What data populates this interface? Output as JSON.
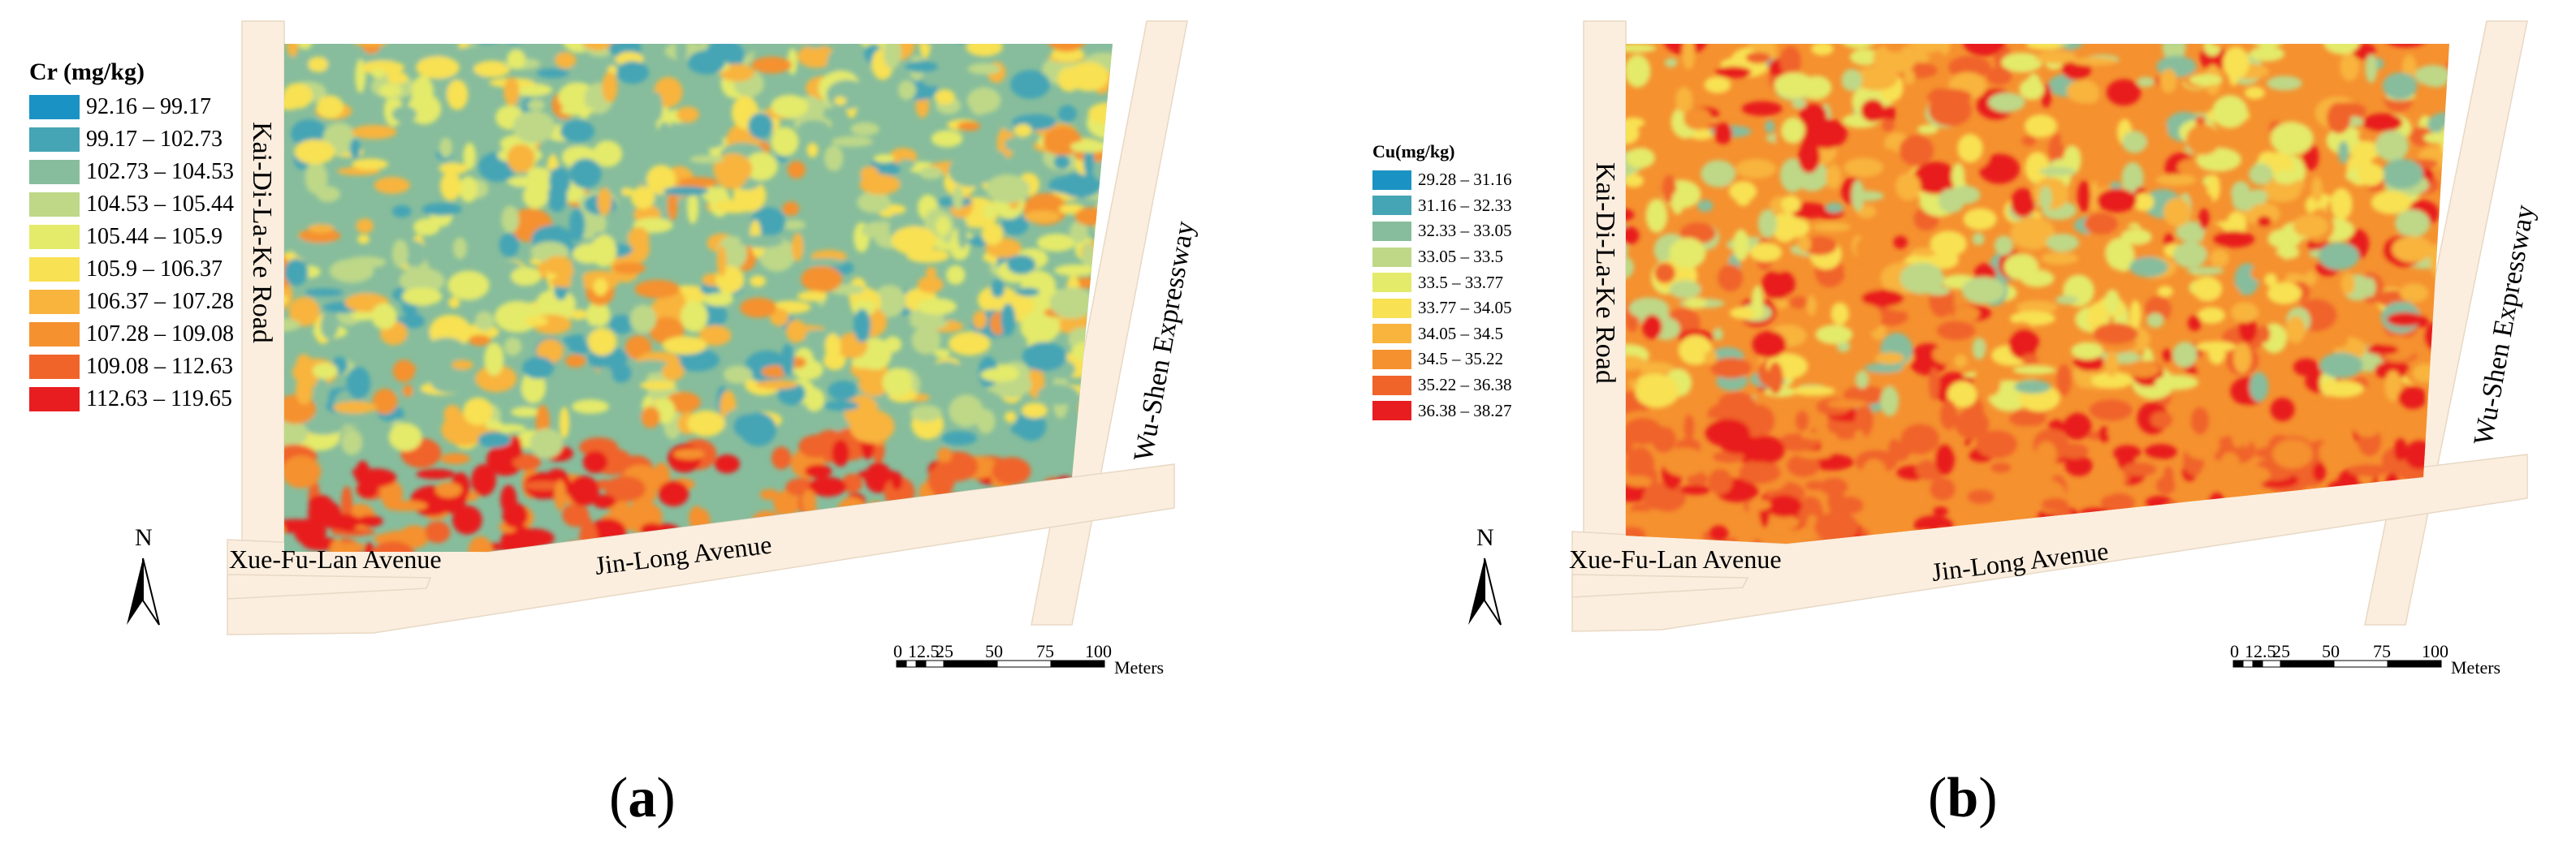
{
  "panels": [
    {
      "id": "a",
      "panel_label": "a",
      "legend_title": "Cr (mg/kg)",
      "classes": [
        {
          "range": "92.16 – 99.17",
          "color": "#1a93c4"
        },
        {
          "range": "99.17 – 102.73",
          "color": "#45a5b5"
        },
        {
          "range": "102.73 – 104.53",
          "color": "#87bd9c"
        },
        {
          "range": "104.53 – 105.44",
          "color": "#bed888"
        },
        {
          "range": "105.44 – 105.9",
          "color": "#e4ea6a"
        },
        {
          "range": "105.9 – 106.37",
          "color": "#f8e152"
        },
        {
          "range": "106.37 – 107.28",
          "color": "#f8b43c"
        },
        {
          "range": "107.28 – 109.08",
          "color": "#f5912f"
        },
        {
          "range": "109.08 – 112.63",
          "color": "#f0642a"
        },
        {
          "range": "112.63 – 119.65",
          "color": "#e81d1f"
        }
      ],
      "roads": {
        "west": "Kai-Di-La-Ke Road",
        "east": "Wu-Shen Expressway",
        "south_west": "Xue-Fu-Lan Avenue",
        "south": "Jin-Long Avenue"
      },
      "north_arrow_label": "N",
      "scale_bar": {
        "ticks": [
          "0",
          "12.5",
          "25",
          "50",
          "75",
          "100"
        ],
        "unit": "Meters"
      }
    },
    {
      "id": "b",
      "panel_label": "b",
      "legend_title": "Cu(mg/kg)",
      "classes": [
        {
          "range": "29.28 – 31.16",
          "color": "#1a93c4"
        },
        {
          "range": "31.16 – 32.33",
          "color": "#45a5b5"
        },
        {
          "range": "32.33 – 33.05",
          "color": "#87bd9c"
        },
        {
          "range": "33.05 – 33.5",
          "color": "#bed888"
        },
        {
          "range": "33.5 – 33.77",
          "color": "#e4ea6a"
        },
        {
          "range": "33.77 – 34.05",
          "color": "#f8e152"
        },
        {
          "range": "34.05 – 34.5",
          "color": "#f8b43c"
        },
        {
          "range": "34.5 – 35.22",
          "color": "#f5912f"
        },
        {
          "range": "35.22 – 36.38",
          "color": "#f0642a"
        },
        {
          "range": "36.38 – 38.27",
          "color": "#e81d1f"
        }
      ],
      "roads": {
        "west": "Kai-Di-La-Ke Road",
        "east": "Wu-Shen Expressway",
        "south_west": "Xue-Fu-Lan Avenue",
        "south": "Jin-Long Avenue"
      },
      "north_arrow_label": "N",
      "scale_bar": {
        "ticks": [
          "0",
          "12.5",
          "25",
          "50",
          "75",
          "100"
        ],
        "unit": "Meters"
      }
    }
  ]
}
